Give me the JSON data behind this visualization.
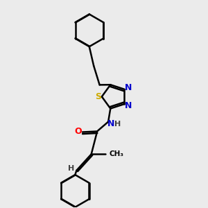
{
  "background_color": "#ebebeb",
  "bond_color": "#000000",
  "atom_colors": {
    "N": "#0000cc",
    "O": "#ff0000",
    "S": "#ccaa00",
    "H": "#404040",
    "C": "#000000"
  },
  "figsize": [
    3.0,
    3.0
  ],
  "dpi": 100,
  "lw": 1.8
}
